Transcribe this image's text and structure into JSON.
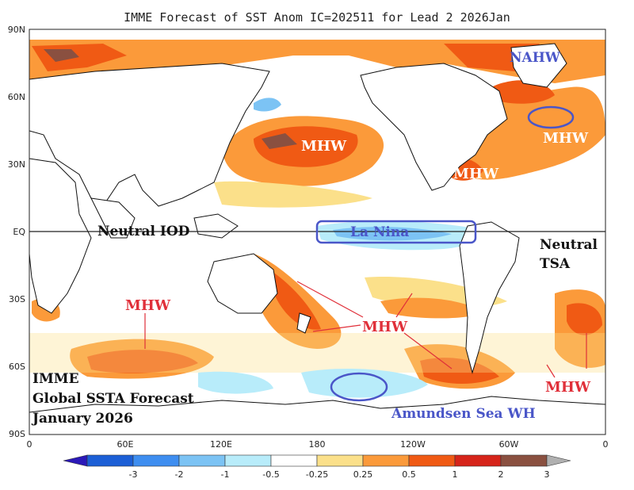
{
  "title": "IMME Forecast of SST Anom IC=202511 for Lead 2 2026Jan",
  "lat_labels": [
    "90N",
    "60N",
    "30N",
    "EQ",
    "30S",
    "60S",
    "90S"
  ],
  "lon_labels": [
    "0",
    "60E",
    "120E",
    "180",
    "120W",
    "60W",
    "0"
  ],
  "colorbar": {
    "labels": [
      "-3",
      "-2",
      "-1",
      "-0.5",
      "-0.25",
      "0.25",
      "0.5",
      "1",
      "2",
      "3"
    ],
    "colors": [
      "#2b19b8",
      "#1c5fd6",
      "#3e8ef0",
      "#7cc3f4",
      "#b8ecfa",
      "#ffffff",
      "#fbe08a",
      "#fb9a3a",
      "#f05a14",
      "#d6241a",
      "#8a5040",
      "#b0b0b0"
    ]
  },
  "annotations": {
    "neutral_iod": "Neutral IOD",
    "la_nina": "La Nina",
    "neutral_tsa_1": "Neutral",
    "neutral_tsa_2": "TSA",
    "nahw": "NAHW",
    "mhw": "MHW",
    "amundsen": "Amundsen Sea WH",
    "forecast_1": "IMME",
    "forecast_2": "Global SSTA Forecast",
    "forecast_3": "January 2026"
  }
}
